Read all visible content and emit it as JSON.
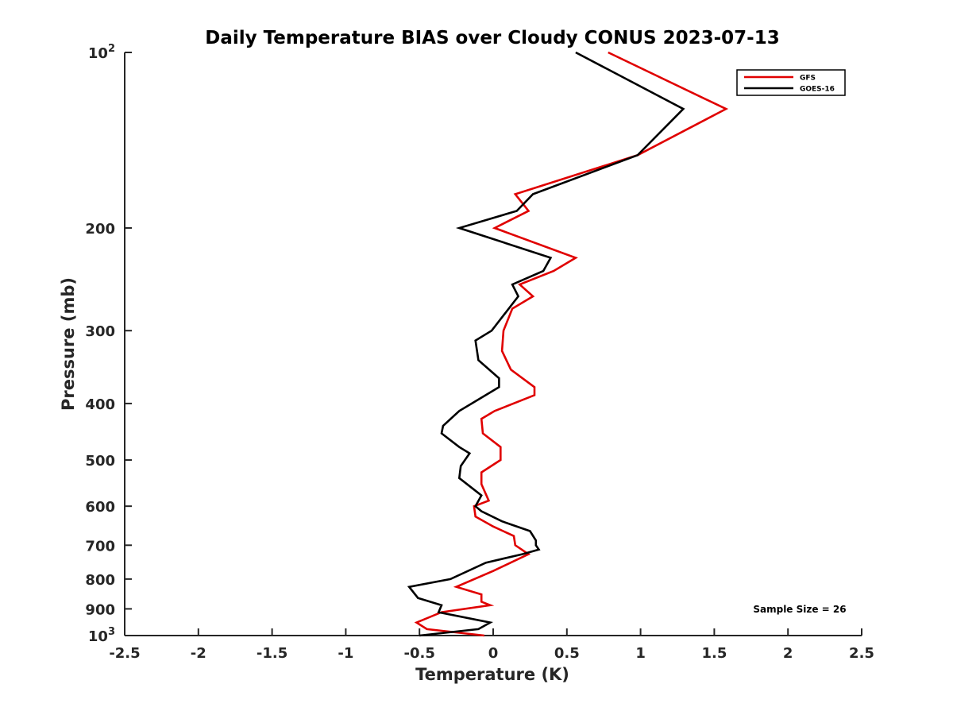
{
  "chart_data": {
    "type": "line",
    "title": "Daily Temperature BIAS over Cloudy CONUS 2023-07-13",
    "xlabel": "Temperature (K)",
    "ylabel": "Pressure (mb)",
    "xlim": [
      -2.5,
      2.5
    ],
    "ylim": [
      1000,
      100
    ],
    "y_scale": "log",
    "y_reversed": true,
    "grid": false,
    "legend_position": "top-right",
    "x_ticks": [
      "-2.5",
      "-2",
      "-1.5",
      "-1",
      "-0.5",
      "0",
      "0.5",
      "1",
      "1.5",
      "2",
      "2.5"
    ],
    "y_ticks": [
      {
        "value": 100,
        "base": "10",
        "exp": "2"
      },
      {
        "value": 200,
        "label": "200"
      },
      {
        "value": 300,
        "label": "300"
      },
      {
        "value": 400,
        "label": "400"
      },
      {
        "value": 500,
        "label": "500"
      },
      {
        "value": 600,
        "label": "600"
      },
      {
        "value": 700,
        "label": "700"
      },
      {
        "value": 800,
        "label": "800"
      },
      {
        "value": 900,
        "label": "900"
      },
      {
        "value": 1000,
        "base": "10",
        "exp": "3"
      }
    ],
    "annotation": "Sample Size = 26",
    "series": [
      {
        "name": "GFS",
        "color": "#e00000",
        "points": [
          [
            0.78,
            100
          ],
          [
            1.58,
            125
          ],
          [
            0.98,
            150
          ],
          [
            0.15,
            175
          ],
          [
            0.24,
            187
          ],
          [
            0.01,
            200
          ],
          [
            0.56,
            225
          ],
          [
            0.41,
            237
          ],
          [
            0.18,
            250
          ],
          [
            0.27,
            262
          ],
          [
            0.13,
            275
          ],
          [
            0.07,
            300
          ],
          [
            0.06,
            325
          ],
          [
            0.12,
            350
          ],
          [
            0.28,
            375
          ],
          [
            0.28,
            387
          ],
          [
            0.01,
            412
          ],
          [
            -0.08,
            425
          ],
          [
            -0.07,
            450
          ],
          [
            0.05,
            475
          ],
          [
            0.05,
            500
          ],
          [
            -0.08,
            525
          ],
          [
            -0.08,
            550
          ],
          [
            -0.03,
            587
          ],
          [
            -0.13,
            600
          ],
          [
            -0.12,
            625
          ],
          [
            0.0,
            650
          ],
          [
            0.14,
            675
          ],
          [
            0.15,
            700
          ],
          [
            0.24,
            725
          ],
          [
            0.0,
            775
          ],
          [
            -0.25,
            825
          ],
          [
            -0.08,
            850
          ],
          [
            -0.08,
            875
          ],
          [
            -0.02,
            887
          ],
          [
            -0.35,
            912
          ],
          [
            -0.52,
            950
          ],
          [
            -0.45,
            975
          ],
          [
            -0.06,
            1000
          ]
        ]
      },
      {
        "name": "GOES-16",
        "color": "#000000",
        "points": [
          [
            0.56,
            100
          ],
          [
            1.29,
            125
          ],
          [
            0.98,
            150
          ],
          [
            0.27,
            175
          ],
          [
            0.16,
            187
          ],
          [
            -0.23,
            200
          ],
          [
            0.39,
            225
          ],
          [
            0.34,
            237
          ],
          [
            0.13,
            250
          ],
          [
            0.17,
            262
          ],
          [
            -0.01,
            300
          ],
          [
            -0.12,
            312
          ],
          [
            -0.1,
            337
          ],
          [
            0.04,
            362
          ],
          [
            0.04,
            375
          ],
          [
            -0.23,
            412
          ],
          [
            -0.34,
            437
          ],
          [
            -0.35,
            450
          ],
          [
            -0.23,
            475
          ],
          [
            -0.16,
            487
          ],
          [
            -0.22,
            512
          ],
          [
            -0.23,
            537
          ],
          [
            -0.13,
            562
          ],
          [
            -0.08,
            575
          ],
          [
            -0.12,
            600
          ],
          [
            -0.08,
            612
          ],
          [
            0.06,
            637
          ],
          [
            0.25,
            662
          ],
          [
            0.29,
            687
          ],
          [
            0.29,
            700
          ],
          [
            0.31,
            712
          ],
          [
            0.2,
            725
          ],
          [
            -0.05,
            750
          ],
          [
            -0.29,
            800
          ],
          [
            -0.57,
            825
          ],
          [
            -0.51,
            862
          ],
          [
            -0.35,
            887
          ],
          [
            -0.37,
            912
          ],
          [
            -0.02,
            950
          ],
          [
            -0.1,
            975
          ],
          [
            -0.5,
            1000
          ]
        ]
      }
    ]
  }
}
